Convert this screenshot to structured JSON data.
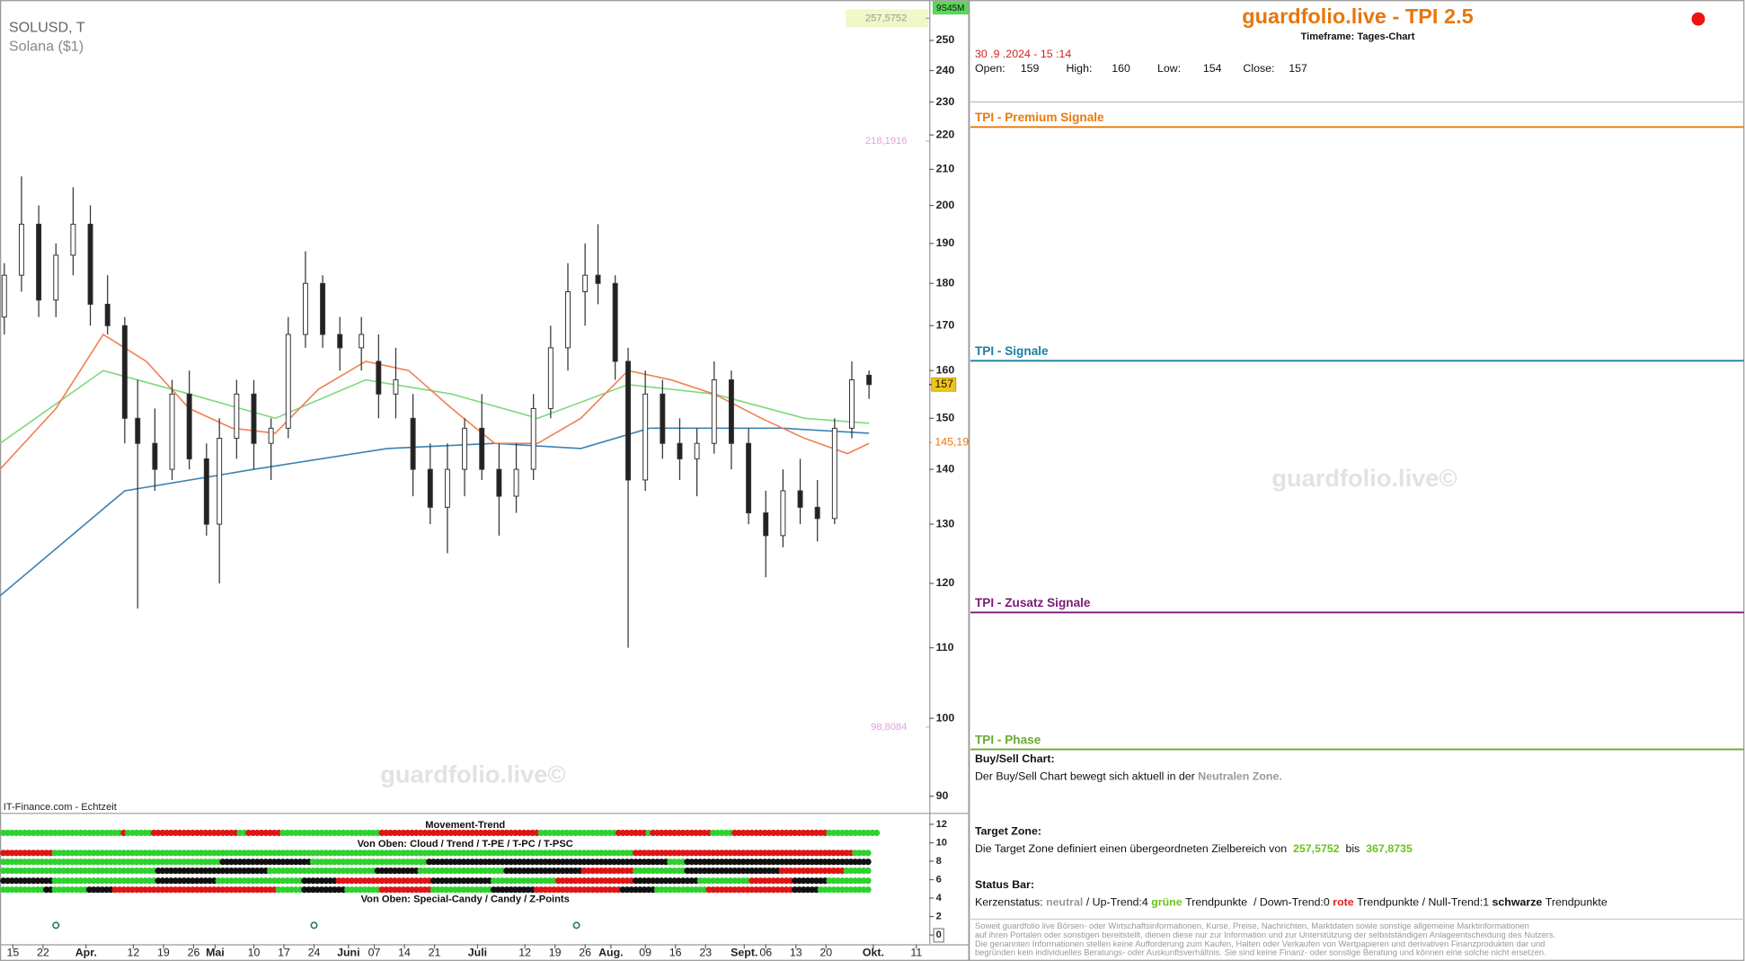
{
  "chart_data": {
    "type": "candlestick",
    "title": "SOLUSD, T",
    "subtitle": "Solana ($1)",
    "source": "IT-Finance.com - Echtzeit",
    "timeframe_badge": "9S45M",
    "watermark": "guardfolio.live©",
    "x": [
      "2024-03-13",
      "2024-03-17",
      "2024-03-21",
      "2024-03-25",
      "2024-03-29",
      "2024-04-02",
      "2024-04-06",
      "2024-04-10",
      "2024-04-13",
      "2024-04-17",
      "2024-04-21",
      "2024-04-25",
      "2024-04-29",
      "2024-05-02",
      "2024-05-06",
      "2024-05-10",
      "2024-05-14",
      "2024-05-18",
      "2024-05-22",
      "2024-05-26",
      "2024-05-30",
      "2024-06-04",
      "2024-06-08",
      "2024-06-12",
      "2024-06-16",
      "2024-06-20",
      "2024-06-24",
      "2024-06-28",
      "2024-07-02",
      "2024-07-06",
      "2024-07-10",
      "2024-07-14",
      "2024-07-18",
      "2024-07-22",
      "2024-07-26",
      "2024-07-29",
      "2024-08-02",
      "2024-08-05",
      "2024-08-09",
      "2024-08-13",
      "2024-08-17",
      "2024-08-21",
      "2024-08-25",
      "2024-08-29",
      "2024-09-02",
      "2024-09-06",
      "2024-09-10",
      "2024-09-14",
      "2024-09-18",
      "2024-09-22",
      "2024-09-26",
      "2024-09-30"
    ],
    "open": [
      172,
      182,
      195,
      176,
      187,
      195,
      175,
      170,
      150,
      145,
      140,
      155,
      142,
      130,
      146,
      155,
      145,
      148,
      168,
      180,
      168,
      165,
      162,
      155,
      150,
      140,
      133,
      140,
      148,
      140,
      135,
      140,
      152,
      165,
      178,
      182,
      180,
      162,
      138,
      155,
      145,
      142,
      145,
      158,
      145,
      132,
      128,
      136,
      133,
      131,
      148,
      159
    ],
    "high": [
      185,
      208,
      200,
      190,
      205,
      200,
      182,
      172,
      158,
      152,
      158,
      160,
      145,
      150,
      158,
      158,
      150,
      172,
      188,
      182,
      172,
      172,
      168,
      165,
      155,
      145,
      145,
      150,
      155,
      145,
      145,
      155,
      170,
      185,
      190,
      195,
      182,
      165,
      160,
      158,
      150,
      148,
      162,
      160,
      148,
      136,
      140,
      142,
      138,
      150,
      162,
      160
    ],
    "low": [
      168,
      178,
      172,
      172,
      182,
      170,
      168,
      145,
      116,
      136,
      138,
      140,
      128,
      120,
      142,
      140,
      138,
      146,
      165,
      165,
      160,
      160,
      150,
      150,
      135,
      130,
      125,
      135,
      138,
      128,
      132,
      138,
      150,
      160,
      170,
      175,
      158,
      110,
      136,
      142,
      138,
      135,
      143,
      140,
      130,
      121,
      126,
      130,
      127,
      130,
      146,
      154
    ],
    "close": [
      182,
      195,
      176,
      187,
      195,
      175,
      170,
      150,
      145,
      140,
      155,
      142,
      130,
      146,
      155,
      145,
      148,
      168,
      180,
      168,
      165,
      168,
      155,
      158,
      140,
      133,
      140,
      148,
      140,
      135,
      140,
      152,
      165,
      178,
      182,
      180,
      162,
      138,
      155,
      145,
      142,
      145,
      158,
      145,
      132,
      128,
      136,
      133,
      131,
      148,
      158,
      157
    ],
    "up_color": "#ffffff",
    "down_color": "#222222",
    "xlim": [
      "2024-03-12",
      "2024-10-14"
    ],
    "xticks": [
      {
        "value": "2024-03-15",
        "label": "15"
      },
      {
        "value": "2024-03-22",
        "label": "22"
      },
      {
        "value": "2024-04-01",
        "label": "Apr."
      },
      {
        "value": "2024-04-12",
        "label": "12"
      },
      {
        "value": "2024-04-19",
        "label": "19"
      },
      {
        "value": "2024-04-26",
        "label": "26"
      },
      {
        "value": "2024-05-01",
        "label": "Mai"
      },
      {
        "value": "2024-05-10",
        "label": "10"
      },
      {
        "value": "2024-05-17",
        "label": "17"
      },
      {
        "value": "2024-05-24",
        "label": "24"
      },
      {
        "value": "2024-06-01",
        "label": "Juni"
      },
      {
        "value": "2024-06-07",
        "label": "07"
      },
      {
        "value": "2024-06-14",
        "label": "14"
      },
      {
        "value": "2024-06-21",
        "label": "21"
      },
      {
        "value": "2024-07-01",
        "label": "Juli"
      },
      {
        "value": "2024-07-12",
        "label": "12"
      },
      {
        "value": "2024-07-19",
        "label": "19"
      },
      {
        "value": "2024-07-26",
        "label": "26"
      },
      {
        "value": "2024-08-01",
        "label": "Aug."
      },
      {
        "value": "2024-08-09",
        "label": "09"
      },
      {
        "value": "2024-08-16",
        "label": "16"
      },
      {
        "value": "2024-08-23",
        "label": "23"
      },
      {
        "value": "2024-09-01",
        "label": "Sept."
      },
      {
        "value": "2024-09-06",
        "label": "06"
      },
      {
        "value": "2024-09-13",
        "label": "13"
      },
      {
        "value": "2024-09-20",
        "label": "20"
      },
      {
        "value": "2024-10-01",
        "label": "Okt."
      },
      {
        "value": "2024-10-11",
        "label": "11"
      }
    ],
    "ylim": [
      88,
      264
    ],
    "log_scale": true,
    "yticks": [
      90,
      100,
      110,
      120,
      130,
      140,
      150,
      160,
      170,
      180,
      190,
      200,
      210,
      220,
      230,
      240,
      250
    ],
    "lines": [
      {
        "color": "#3c82b4",
        "x": [
          "2024-03-12",
          "2024-04-10",
          "2024-05-10",
          "2024-06-10",
          "2024-07-05",
          "2024-07-25",
          "2024-08-10",
          "2024-09-10",
          "2024-09-30"
        ],
        "values": [
          118,
          136,
          140,
          144,
          145,
          144,
          148,
          148,
          147
        ]
      },
      {
        "color": "#7fd87f",
        "x": [
          "2024-03-12",
          "2024-04-05",
          "2024-04-25",
          "2024-05-15",
          "2024-06-05",
          "2024-06-25",
          "2024-07-15",
          "2024-08-05",
          "2024-08-25",
          "2024-09-15",
          "2024-09-30"
        ],
        "values": [
          145,
          160,
          155,
          150,
          158,
          155,
          150,
          157,
          155,
          150,
          149
        ]
      },
      {
        "color": "#f08050",
        "x": [
          "2024-03-12",
          "2024-03-25",
          "2024-04-05",
          "2024-04-15",
          "2024-04-25",
          "2024-05-05",
          "2024-05-15",
          "2024-05-25",
          "2024-06-05",
          "2024-06-15",
          "2024-06-25",
          "2024-07-05",
          "2024-07-15",
          "2024-07-25",
          "2024-08-05",
          "2024-08-15",
          "2024-08-25",
          "2024-09-05",
          "2024-09-15",
          "2024-09-25",
          "2024-09-30"
        ],
        "values": [
          140,
          152,
          168,
          162,
          152,
          148,
          147,
          156,
          162,
          160,
          152,
          145,
          145,
          150,
          160,
          158,
          155,
          150,
          146,
          143,
          145
        ]
      }
    ],
    "price_labels": [
      {
        "value": 257.5752,
        "label": "257,5752",
        "color": "#999999",
        "bg": "#eef8c8",
        "side": "inside"
      },
      {
        "value": 218.1916,
        "label": "218,1916",
        "color": "#e0a0e0",
        "side": "inside"
      },
      {
        "value": 98.8084,
        "label": "98,8084",
        "color": "#e0a0e0",
        "side": "inside"
      },
      {
        "value": 157,
        "label": "157",
        "color": "#111111",
        "bg": "#f0c419",
        "side": "axis"
      },
      {
        "value": 145.19,
        "label": "145,19",
        "color": "#e87a0c",
        "side": "axis"
      }
    ],
    "lower_panel": {
      "title": "Movement-Trend",
      "label_top": "Von Oben: Cloud / Trend / T-PE / T-PC / T-PSC",
      "label_bottom": "Von Oben: Special-Candy / Candy / Z-Points",
      "ylim": [
        -1,
        13
      ],
      "yticks": [
        0,
        2,
        4,
        6,
        8,
        10,
        12
      ],
      "palette": {
        "G": "#2ed12e",
        "R": "#dd1515",
        "K": "#111111"
      },
      "rows": [
        [
          [
            "G",
            28
          ],
          [
            "R",
            1
          ],
          [
            "G",
            6
          ],
          [
            "R",
            20
          ],
          [
            "G",
            2
          ],
          [
            "R",
            8
          ],
          [
            "G",
            23
          ],
          [
            "R",
            37
          ],
          [
            "G",
            18
          ],
          [
            "R",
            7
          ],
          [
            "G",
            1
          ],
          [
            "R",
            14
          ],
          [
            "G",
            5
          ],
          [
            "R",
            22
          ],
          [
            "G",
            12
          ]
        ],
        [
          [
            "R",
            12
          ],
          [
            "G",
            135
          ],
          [
            "R",
            51
          ],
          [
            "G",
            4
          ]
        ],
        [
          [
            "G",
            51
          ],
          [
            "K",
            21
          ],
          [
            "G",
            27
          ],
          [
            "K",
            56
          ],
          [
            "G",
            4
          ],
          [
            "K",
            43
          ]
        ],
        [
          [
            "G",
            36
          ],
          [
            "K",
            26
          ],
          [
            "G",
            25
          ],
          [
            "K",
            10
          ],
          [
            "G",
            20
          ],
          [
            "K",
            18
          ],
          [
            "R",
            12
          ],
          [
            "G",
            12
          ],
          [
            "K",
            22
          ],
          [
            "R",
            15
          ],
          [
            "G",
            6
          ]
        ],
        [
          [
            "K",
            12
          ],
          [
            "G",
            24
          ],
          [
            "K",
            14
          ],
          [
            "G",
            20
          ],
          [
            "K",
            8
          ],
          [
            "R",
            22
          ],
          [
            "K",
            14
          ],
          [
            "G",
            15
          ],
          [
            "R",
            18
          ],
          [
            "K",
            15
          ],
          [
            "G",
            12
          ],
          [
            "R",
            10
          ],
          [
            "K",
            8
          ],
          [
            "G",
            10
          ]
        ],
        [
          [
            "G",
            10
          ],
          [
            "K",
            2
          ],
          [
            "G",
            8
          ],
          [
            "K",
            6
          ],
          [
            "R",
            38
          ],
          [
            "G",
            6
          ],
          [
            "K",
            10
          ],
          [
            "G",
            8
          ],
          [
            "R",
            12
          ],
          [
            "G",
            14
          ],
          [
            "K",
            10
          ],
          [
            "R",
            20
          ],
          [
            "K",
            8
          ],
          [
            "G",
            12
          ],
          [
            "R",
            20
          ],
          [
            "K",
            6
          ],
          [
            "G",
            12
          ]
        ]
      ],
      "z_points": [
        "2024-03-25",
        "2024-05-24",
        "2024-07-24"
      ]
    }
  },
  "panel": {
    "title": "guardfolio.live - TPI 2.5",
    "timeframe": "Timeframe: Tages-Chart",
    "datetime": "30 .9 .2024 - 15 :14",
    "ohlc": [
      {
        "label": "Open:",
        "value": 159
      },
      {
        "label": "High:",
        "value": 160
      },
      {
        "label": "Low:",
        "value": 154
      },
      {
        "label": "Close:",
        "value": 157
      }
    ],
    "sections": [
      {
        "title": "TPI - Premium Signale",
        "color": "#e87a0c"
      },
      {
        "title": "TPI - Signale",
        "color": "#1a7fa0"
      },
      {
        "title": "TPI - Zusatz Signale",
        "color": "#7a1a7a"
      },
      {
        "title": "TPI - Phase",
        "color": "#6aa832"
      }
    ],
    "watermark": "guardfolio.live©",
    "buy_sell": {
      "title": "Buy/Sell Chart:",
      "text": "Der Buy/Sell Chart bewegt sich aktuell in der",
      "zone": "Neutralen Zone."
    },
    "target": {
      "title": "Target Zone:",
      "text": "Die Target Zone definiert einen übergeordneten Zielbereich von",
      "from": "257,5752",
      "mid": "bis",
      "to": "367,8735"
    },
    "status": {
      "title": "Status Bar:",
      "parts": [
        {
          "text": "Kerzenstatus:",
          "style": "plain"
        },
        {
          "text": "neutral",
          "style": "muted"
        },
        {
          "text": "/ Up-Trend:4",
          "style": "plain"
        },
        {
          "text": "grüne",
          "style": "good"
        },
        {
          "text": "Trendpunkte  / Down-Trend:0",
          "style": "plain"
        },
        {
          "text": "rote",
          "style": "bad"
        },
        {
          "text": "Trendpunkte / Null-Trend:1",
          "style": "plain"
        },
        {
          "text": "schwarze",
          "style": "strong"
        },
        {
          "text": "Trendpunkte",
          "style": "plain"
        }
      ]
    },
    "disclaimer": [
      "Soweit guardfolio live Börsen- oder Wirtschaftsinformationen, Kurse, Preise, Nachrichten, Marktdaten sowie sonstige allgemeine Marktinformationen",
      "auf ihren Portalen oder sonstigen bereitstellt, dienen diese nur zur Information und zur Unterstützung der selbstständigen Anlageentscheidung des Nutzers.",
      "Die genannten Informationen stellen keine Aufforderung zum Kaufen, Halten oder Verkaufen von Wertpapieren und derivativen Finanzprodukten dar und",
      "begründen kein individuelles Beratungs- oder Auskunftsverhältnis. Sie sind keine Finanz- oder sonstige Beratung und können eine solche nicht ersetzen."
    ]
  }
}
